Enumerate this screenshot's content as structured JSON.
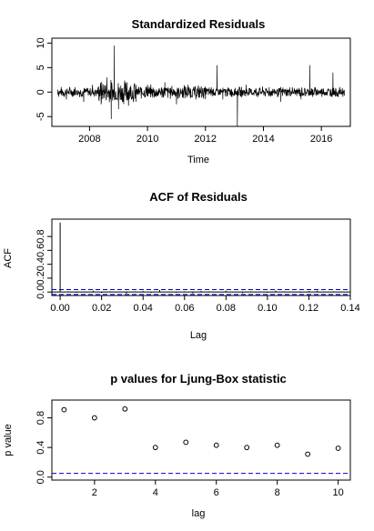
{
  "chart_data": [
    {
      "type": "line",
      "title": "Standardized Residuals",
      "xlabel": "Time",
      "ylabel": "",
      "xlim": [
        2006.7,
        2017.0
      ],
      "ylim": [
        -7,
        11
      ],
      "x_ticks": [
        2008,
        2010,
        2012,
        2014,
        2016
      ],
      "x_tick_labels": [
        "2008",
        "2010",
        "2012",
        "2014",
        "2016"
      ],
      "y_ticks": [
        -5,
        0,
        5,
        10
      ],
      "y_tick_labels": [
        "-5",
        "0",
        "5",
        "10"
      ],
      "series": [
        {
          "x": [
            2006.9,
            2007.2,
            2007.5,
            2007.8,
            2008.1,
            2008.4,
            2008.6,
            2008.75,
            2008.85,
            2009.0,
            2009.3,
            2009.6,
            2010.0,
            2010.3,
            2010.6,
            2011.0,
            2011.4,
            2011.8,
            2012.2,
            2012.4,
            2012.6,
            2013.0,
            2013.1,
            2013.4,
            2013.8,
            2014.2,
            2014.6,
            2015.0,
            2015.3,
            2015.6,
            2015.7,
            2016.0,
            2016.4,
            2016.8
          ],
          "values": [
            0.5,
            -1.5,
            1.0,
            -2.0,
            1.5,
            -2.5,
            3.0,
            -5.5,
            9.5,
            -3.5,
            2.0,
            -2.0,
            1.5,
            -1.0,
            2.0,
            -2.5,
            1.5,
            -1.0,
            1.0,
            5.5,
            -1.5,
            0.5,
            -7.0,
            1.5,
            -1.0,
            1.0,
            -2.0,
            1.0,
            -1.5,
            5.5,
            -1.0,
            0.5,
            4.0,
            -0.5
          ]
        }
      ],
      "grid": false
    },
    {
      "type": "bar",
      "title": "ACF of Residuals",
      "xlabel": "Lag",
      "ylabel": "ACF",
      "xlim": [
        -0.004,
        0.14
      ],
      "ylim": [
        -0.05,
        1.05
      ],
      "x_ticks": [
        0.0,
        0.02,
        0.04,
        0.06,
        0.08,
        0.1,
        0.12,
        0.14
      ],
      "x_tick_labels": [
        "0.00",
        "0.02",
        "0.04",
        "0.06",
        "0.08",
        "0.10",
        "0.12",
        "0.14"
      ],
      "y_ticks": [
        0.0,
        0.2,
        0.4,
        0.6,
        0.8
      ],
      "y_tick_labels": [
        "0.0",
        "0.2",
        "0.4",
        "0.6",
        "0.8"
      ],
      "lags": [
        0.0,
        0.004,
        0.008,
        0.012,
        0.016,
        0.02,
        0.024,
        0.028,
        0.032,
        0.036,
        0.04,
        0.044,
        0.048,
        0.052,
        0.056,
        0.06,
        0.064,
        0.068,
        0.072,
        0.076,
        0.08,
        0.084,
        0.088,
        0.092,
        0.096,
        0.1,
        0.104,
        0.108,
        0.112,
        0.116,
        0.12,
        0.124,
        0.128,
        0.132,
        0.136
      ],
      "values": [
        1.0,
        0.01,
        -0.01,
        0.005,
        0.02,
        -0.015,
        0.01,
        0.005,
        -0.02,
        0.01,
        0.015,
        -0.01,
        0.03,
        0.005,
        -0.01,
        0.01,
        -0.02,
        0.015,
        0.01,
        -0.005,
        0.02,
        0.005,
        -0.015,
        0.01,
        0.005,
        -0.01,
        0.02,
        0.01,
        0.005,
        -0.01,
        0.015,
        0.02,
        -0.005,
        0.01,
        0.005
      ],
      "ci": 0.035,
      "ci_color": "#0000cc"
    },
    {
      "type": "scatter",
      "title": "p values for Ljung-Box statistic",
      "xlabel": "lag",
      "ylabel": "p value",
      "xlim": [
        0.6,
        10.4
      ],
      "ylim": [
        -0.04,
        1.04
      ],
      "x_ticks": [
        2,
        4,
        6,
        8,
        10
      ],
      "x_tick_labels": [
        "2",
        "4",
        "6",
        "8",
        "10"
      ],
      "y_ticks": [
        0.0,
        0.4,
        0.8
      ],
      "y_tick_labels": [
        "0.0",
        "0.4",
        "0.8"
      ],
      "x": [
        1,
        2,
        3,
        4,
        5,
        6,
        7,
        8,
        9,
        10
      ],
      "values": [
        0.91,
        0.8,
        0.92,
        0.4,
        0.47,
        0.43,
        0.4,
        0.43,
        0.31,
        0.39
      ],
      "threshold": 0.05,
      "threshold_color": "#0000cc"
    }
  ]
}
